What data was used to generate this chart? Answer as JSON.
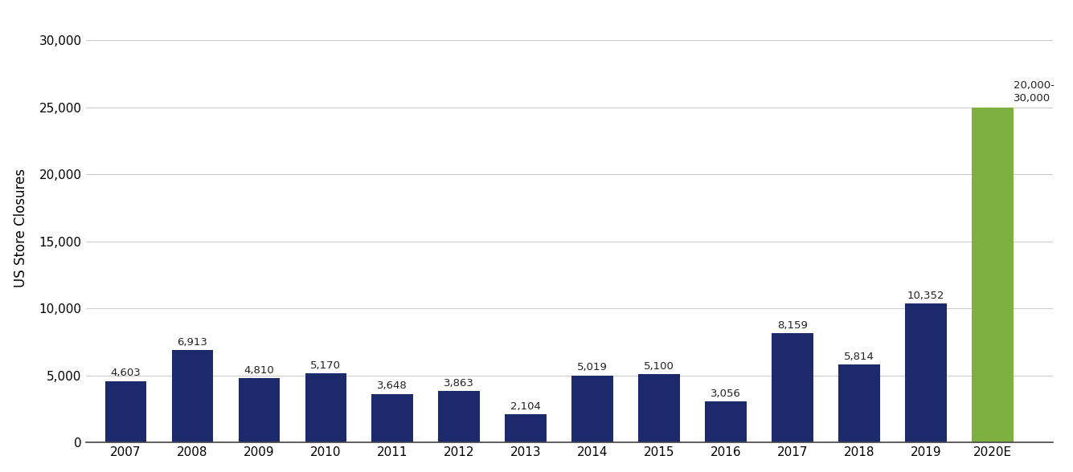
{
  "categories": [
    "2007",
    "2008",
    "2009",
    "2010",
    "2011",
    "2012",
    "2013",
    "2014",
    "2015",
    "2016",
    "2017",
    "2018",
    "2019",
    "2020E"
  ],
  "values": [
    4603,
    6913,
    4810,
    5170,
    3648,
    3863,
    2104,
    5019,
    5100,
    3056,
    8159,
    5814,
    10352,
    25000
  ],
  "bar_colors": [
    "#1c2a6b",
    "#1c2a6b",
    "#1c2a6b",
    "#1c2a6b",
    "#1c2a6b",
    "#1c2a6b",
    "#1c2a6b",
    "#1c2a6b",
    "#1c2a6b",
    "#1c2a6b",
    "#1c2a6b",
    "#1c2a6b",
    "#1c2a6b",
    "#7db040"
  ],
  "labels": [
    "4,603",
    "6,913",
    "4,810",
    "5,170",
    "3,648",
    "3,863",
    "2,104",
    "5,019",
    "5,100",
    "3,056",
    "8,159",
    "5,814",
    "10,352",
    "20,000-\n30,000"
  ],
  "ylabel": "US Store Closures",
  "ylim": [
    0,
    32000
  ],
  "yticks": [
    0,
    5000,
    10000,
    15000,
    20000,
    25000,
    30000
  ],
  "ytick_labels": [
    "0",
    "5,000",
    "10,000",
    "15,000",
    "20,000",
    "25,000",
    "30,000"
  ],
  "background_color": "#ffffff",
  "bar_label_fontsize": 9.5,
  "bar_label_color": "#222222",
  "ylabel_fontsize": 12,
  "tick_fontsize": 11,
  "grid_color": "#cccccc",
  "special_label_index": 13
}
